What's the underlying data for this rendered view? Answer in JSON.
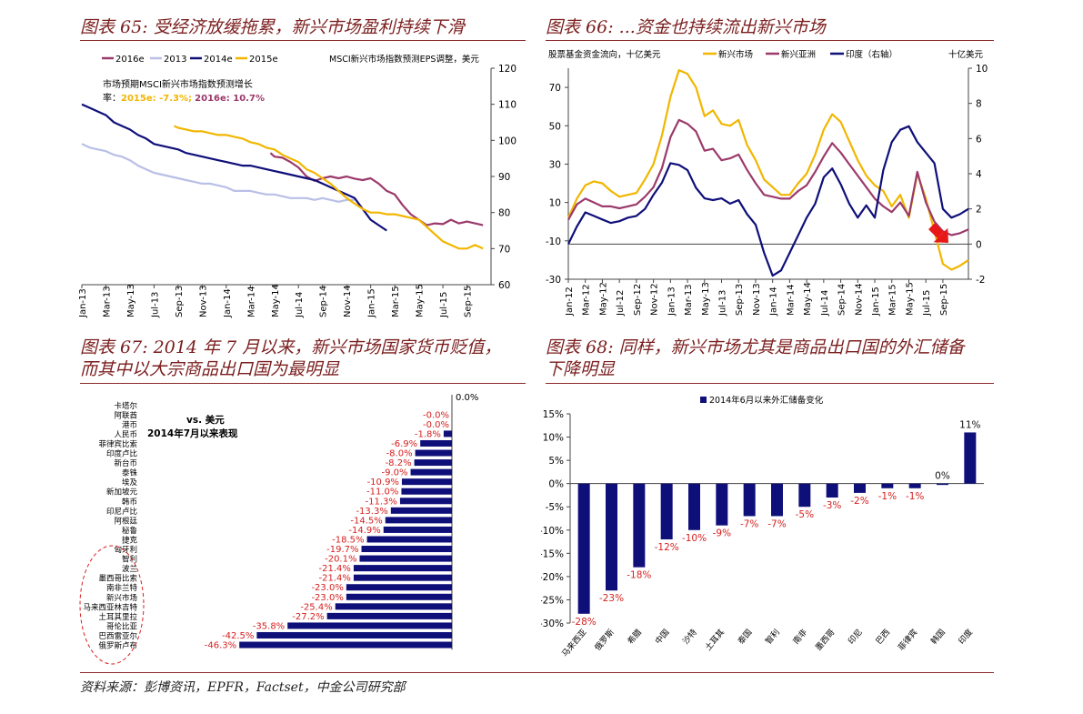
{
  "titles": {
    "c65": "图表 65: 受经济放缓拖累，新兴市场盈利持续下滑",
    "c66": "图表 66: ...资金也持续流出新兴市场",
    "c67_line1": "图表 67: 2014 年 7 月以来，新兴市场国家货币贬值，",
    "c67_line2": "而其中以大宗商品出口国为最明显",
    "c68_line1": "图表 68: 同样，新兴市场尤其是商品出口国的外汇储备",
    "c68_line2": "下降明显"
  },
  "source": "资料来源：彭博资讯，EPFR，Factset，中金公司研究部",
  "chart_data": [
    {
      "id": "c65",
      "type": "line",
      "axis_title": "MSCI新兴市场指数预测EPS调整，美元",
      "annotation_line1": "市场预期MSCI新兴市场指数预测增长",
      "annotation_line2a": "率：",
      "annotation_2015": "2015e: -7.3%;",
      "annotation_2016": "2016e: 10.7%",
      "ylim": [
        60,
        120
      ],
      "yticks": [
        "60",
        "70",
        "80",
        "90",
        "100",
        "110",
        "120"
      ],
      "xticks": [
        "Jan-13",
        "Mar-13",
        "May-13",
        "Jul-13",
        "Sep-13",
        "Nov-13",
        "Jan-14",
        "Mar-14",
        "May-14",
        "Jul-14",
        "Sep-14",
        "Nov-14",
        "Jan-15",
        "Mar-15",
        "May-15",
        "Jul-15",
        "Sep-15"
      ],
      "series": [
        {
          "name": "2016e",
          "color": "#9b3a6b",
          "x": [
            23.5,
            24,
            25,
            26,
            27,
            28,
            29,
            30,
            31,
            32,
            33,
            34,
            35,
            36,
            37,
            38,
            39,
            40,
            41,
            42,
            43,
            44,
            45,
            46,
            47,
            48,
            49,
            50
          ],
          "values": [
            96.5,
            95.5,
            95.2,
            94,
            92.5,
            90,
            88.8,
            89.5,
            90,
            89.5,
            90,
            89.4,
            89,
            89.5,
            88,
            86,
            85,
            82,
            79.5,
            78,
            76.5,
            77,
            76.8,
            78,
            77,
            77.5,
            77,
            76.5
          ]
        },
        {
          "name": "2013",
          "color": "#b9bfe6",
          "x": [
            0,
            1,
            2,
            3,
            4,
            5,
            6,
            7,
            8,
            9,
            10,
            11,
            12,
            13,
            14,
            15,
            16,
            17,
            18,
            19,
            20,
            21,
            22,
            23,
            24,
            25,
            26,
            27,
            28,
            29,
            30,
            31,
            32,
            33,
            34
          ],
          "values": [
            99,
            98,
            97.5,
            97,
            96,
            95.5,
            94.5,
            93,
            92,
            91,
            90.5,
            90,
            89.5,
            89,
            88.5,
            88,
            88,
            87.5,
            87,
            86,
            86,
            86,
            85.5,
            85,
            85,
            84.5,
            84,
            84,
            84,
            83.5,
            84,
            83.5,
            83,
            83.5,
            83.5
          ]
        },
        {
          "name": "2014e",
          "color": "#0f0f7a",
          "x": [
            0,
            1,
            2,
            3,
            4,
            5,
            6,
            7,
            8,
            9,
            10,
            11,
            12,
            13,
            14,
            15,
            16,
            17,
            18,
            19,
            20,
            21,
            22,
            23,
            24,
            25,
            26,
            27,
            28,
            29,
            30,
            31,
            32,
            33,
            34,
            35,
            36,
            37,
            38
          ],
          "values": [
            110,
            109,
            108,
            107,
            105,
            104,
            103,
            101.5,
            100.5,
            99,
            98.5,
            98,
            97.5,
            96.5,
            96,
            95.5,
            95,
            94.5,
            94,
            93.5,
            93,
            93,
            92.5,
            92,
            91.5,
            91,
            90.5,
            90,
            89.5,
            89,
            88,
            87,
            86,
            85,
            84,
            81,
            78,
            76.5,
            75
          ]
        },
        {
          "name": "2015e",
          "color": "#f2b600",
          "x": [
            11.5,
            12,
            13,
            14,
            15,
            16,
            17,
            18,
            19,
            20,
            21,
            22,
            23,
            24,
            25,
            26,
            27,
            28,
            29,
            30,
            31,
            32,
            33,
            34,
            35,
            36,
            37,
            38,
            39,
            40,
            41,
            42,
            43,
            44,
            45,
            46,
            47,
            48,
            49,
            50
          ],
          "values": [
            104,
            103.5,
            103,
            102.5,
            102.5,
            102,
            101.5,
            101.5,
            101,
            100.5,
            99.5,
            99,
            98,
            97.5,
            96,
            95,
            94,
            92,
            91,
            89.5,
            88,
            86,
            84,
            82.5,
            81,
            80,
            80,
            79.5,
            79.5,
            79,
            78.5,
            78,
            76,
            74,
            72,
            71,
            70,
            70,
            71,
            70
          ]
        }
      ]
    },
    {
      "id": "c66",
      "type": "line",
      "axis_title": "股票基金资金流向，十亿美元",
      "right_axis_title": "十亿美元",
      "ylim_left": [
        -30,
        80
      ],
      "ylim_right": [
        -2,
        10
      ],
      "yticks_left": [
        "-30",
        "-10",
        "10",
        "30",
        "50",
        "70"
      ],
      "yticks_right": [
        "-2",
        "0",
        "2",
        "4",
        "6",
        "8",
        "10"
      ],
      "xticks": [
        "Jan-12",
        "Mar-12",
        "May-12",
        "Jul-12",
        "Sep-12",
        "Nov-12",
        "Jan-13",
        "Mar-13",
        "May-13",
        "Jul-13",
        "Sep-13",
        "Nov-13",
        "Jan-14",
        "Mar-14",
        "May-14",
        "Jul-14",
        "Sep-14",
        "Nov-14",
        "Jan-15",
        "Mar-15",
        "May-15",
        "Jul-15",
        "Sep-15"
      ],
      "series": [
        {
          "name": "新兴市场",
          "color": "#f2b600",
          "axis": "left",
          "x": [
            0,
            0.5,
            1,
            1.5,
            2,
            2.5,
            3,
            3.5,
            4,
            4.5,
            5,
            5.5,
            6,
            6.5,
            7,
            7.5,
            8,
            8.5,
            9,
            9.5,
            10,
            10.5,
            11,
            11.5,
            12,
            12.5,
            13,
            13.5,
            14,
            14.5,
            15,
            15.5,
            16,
            16.5,
            17,
            17.5,
            18,
            18.5,
            19,
            19.5,
            20,
            20.5,
            21,
            21.5,
            22,
            22.5,
            23,
            23.5
          ],
          "values": [
            2,
            12,
            19,
            21,
            20,
            16,
            13,
            14,
            15,
            22,
            30,
            45,
            65,
            79,
            77,
            70,
            55,
            58,
            51,
            50,
            53,
            40,
            32,
            22,
            18,
            14,
            14,
            20,
            25,
            35,
            48,
            56,
            52,
            42,
            32,
            24,
            19,
            16,
            8,
            14,
            2,
            25,
            12,
            -5,
            -22,
            -25,
            -23,
            -20
          ]
        },
        {
          "name": "新兴亚洲",
          "color": "#9b3a6b",
          "axis": "left",
          "x": [
            0,
            0.5,
            1,
            1.5,
            2,
            2.5,
            3,
            3.5,
            4,
            4.5,
            5,
            5.5,
            6,
            6.5,
            7,
            7.5,
            8,
            8.5,
            9,
            9.5,
            10,
            10.5,
            11,
            11.5,
            12,
            12.5,
            13,
            13.5,
            14,
            14.5,
            15,
            15.5,
            16,
            16.5,
            17,
            17.5,
            18,
            18.5,
            19,
            19.5,
            20,
            20.5,
            21,
            21.5,
            22,
            22.5,
            23,
            23.5
          ],
          "values": [
            1,
            9,
            12,
            10,
            8,
            8,
            7,
            8,
            9,
            13,
            18,
            28,
            44,
            53,
            51,
            47,
            37,
            38,
            32,
            33,
            35,
            27,
            20,
            14,
            13,
            12,
            12,
            16,
            19,
            26,
            34,
            41,
            36,
            30,
            24,
            18,
            12,
            8,
            5,
            10,
            3,
            26,
            10,
            0,
            -5,
            -7,
            -6,
            -4
          ]
        },
        {
          "name": "印度（右轴）",
          "color": "#0f0f7a",
          "axis": "right",
          "x": [
            0,
            0.5,
            1,
            1.5,
            2,
            2.5,
            3,
            3.5,
            4,
            4.5,
            5,
            5.5,
            6,
            6.5,
            7,
            7.5,
            8,
            8.5,
            9,
            9.5,
            10,
            10.5,
            11,
            11.5,
            12,
            12.5,
            13,
            13.5,
            14,
            14.5,
            15,
            15.5,
            16,
            16.5,
            17,
            17.5,
            18,
            18.5,
            19,
            19.5,
            20,
            20.5,
            21,
            21.5,
            22,
            22.5,
            23,
            23.5
          ],
          "values": [
            0,
            1,
            1.8,
            1.6,
            1.4,
            1.2,
            1.3,
            1.5,
            1.6,
            2,
            2.8,
            3.5,
            4.6,
            4.5,
            4.2,
            3.2,
            2.6,
            2.5,
            2.6,
            2.3,
            2.5,
            1.7,
            1.1,
            -0.5,
            -1.8,
            -1.5,
            -0.5,
            0.5,
            1.5,
            2.3,
            3.8,
            4.3,
            3.4,
            2.3,
            1.5,
            2.2,
            1.5,
            4.2,
            5.8,
            6.5,
            6.7,
            5.8,
            5.2,
            4.6,
            2,
            1.5,
            1.7,
            2
          ]
        }
      ]
    },
    {
      "id": "c67",
      "type": "bar",
      "orientation": "horizontal",
      "note_line1": "vs. 美元",
      "note_line2": "2014年7月以来表现",
      "top_label": "0.0%",
      "color": "#0f0f7a",
      "label_color": "#d62020",
      "categories": [
        "卡塔尔",
        "阿联酋",
        "港币",
        "人民币",
        "菲律宾比索",
        "印度卢比",
        "新台币",
        "泰铢",
        "埃及",
        "新加坡元",
        "韩币",
        "印尼卢比",
        "阿根廷",
        "秘鲁",
        "捷克",
        "匈牙利",
        "智利",
        "波兰",
        "墨西哥比索",
        "南非兰特",
        "新兴市场",
        "马来西亚林吉特",
        "土耳其里拉",
        "哥伦比亚",
        "巴西雷亚尔",
        "俄罗斯卢布"
      ],
      "values": [
        -0.0,
        -0.0,
        -0.0,
        -1.8,
        -6.9,
        -8.0,
        -8.2,
        -9.0,
        -10.9,
        -11.0,
        -11.3,
        -13.3,
        -14.5,
        -14.9,
        -18.5,
        -19.7,
        -20.1,
        -21.4,
        -21.4,
        -23.0,
        -23.0,
        -25.4,
        -27.2,
        -35.8,
        -42.5,
        -46.3
      ],
      "value_labels": [
        "",
        "-0.0%",
        "-0.0%",
        "-1.8%",
        "-6.9%",
        "-8.0%",
        "-8.2%",
        "-9.0%",
        "-10.9%",
        "-11.0%",
        "-11.3%",
        "-13.3%",
        "-14.5%",
        "-14.9%",
        "-18.5%",
        "-19.7%",
        "-20.1%",
        "-21.4%",
        "-21.4%",
        "-23.0%",
        "-23.0%",
        "-25.4%",
        "-27.2%",
        "-35.8%",
        "-42.5%",
        "-46.3%"
      ]
    },
    {
      "id": "c68",
      "type": "bar",
      "legend": "2014年6月以来外汇储备变化",
      "color": "#0f0f7a",
      "label_color": "#d62020",
      "ylim": [
        -30,
        15
      ],
      "yticks": [
        "15%",
        "10%",
        "5%",
        "0%",
        "-5%",
        "-10%",
        "-15%",
        "-20%",
        "-25%",
        "-30%"
      ],
      "categories": [
        "马来西亚",
        "俄罗斯",
        "希腊",
        "中国",
        "沙特",
        "土耳其",
        "泰国",
        "智利",
        "南非",
        "墨西哥",
        "印尼",
        "巴西",
        "菲律宾",
        "韩国",
        "印度"
      ],
      "values": [
        -28,
        -23,
        -18,
        -12,
        -10,
        -9,
        -7,
        -7,
        -5,
        -3,
        -2,
        -1,
        -1,
        0,
        11
      ],
      "value_labels": [
        "-28%",
        "-23%",
        "-18%",
        "-12%",
        "-10%",
        "-9%",
        "-7%",
        "-7%",
        "-5%",
        "-3%",
        "-2%",
        "-1%",
        "-1%",
        "0%",
        "11%"
      ]
    }
  ]
}
